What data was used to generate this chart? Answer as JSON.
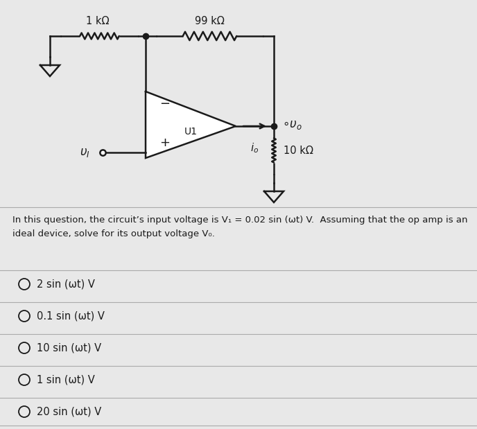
{
  "bg_color": "#e8e8e8",
  "circuit_bg": "#e8e8e8",
  "circuit_labels": {
    "r1": "1 kΩ",
    "r2": "99 kΩ",
    "r3": "10 kΩ",
    "u1": "U1"
  },
  "question_text_line1": "In this question, the circuit’s input voltage is V₁ = 0.02 sin (ωt) V.  Assuming that the op amp is an",
  "question_text_line2": "ideal device, solve for its output voltage V₀.",
  "choices": [
    "2 sin (ωt) V",
    "0.1 sin (ωt) V",
    "10 sin (ωt) V",
    "1 sin (ωt) V",
    "20 sin (ωt) V"
  ],
  "line_color": "#1a1a1a",
  "text_color": "#1a1a1a",
  "divider_color": "#bbbbbb",
  "choice_bg_odd": "#e0e0e0",
  "choice_bg_even": "#d0d0d0"
}
